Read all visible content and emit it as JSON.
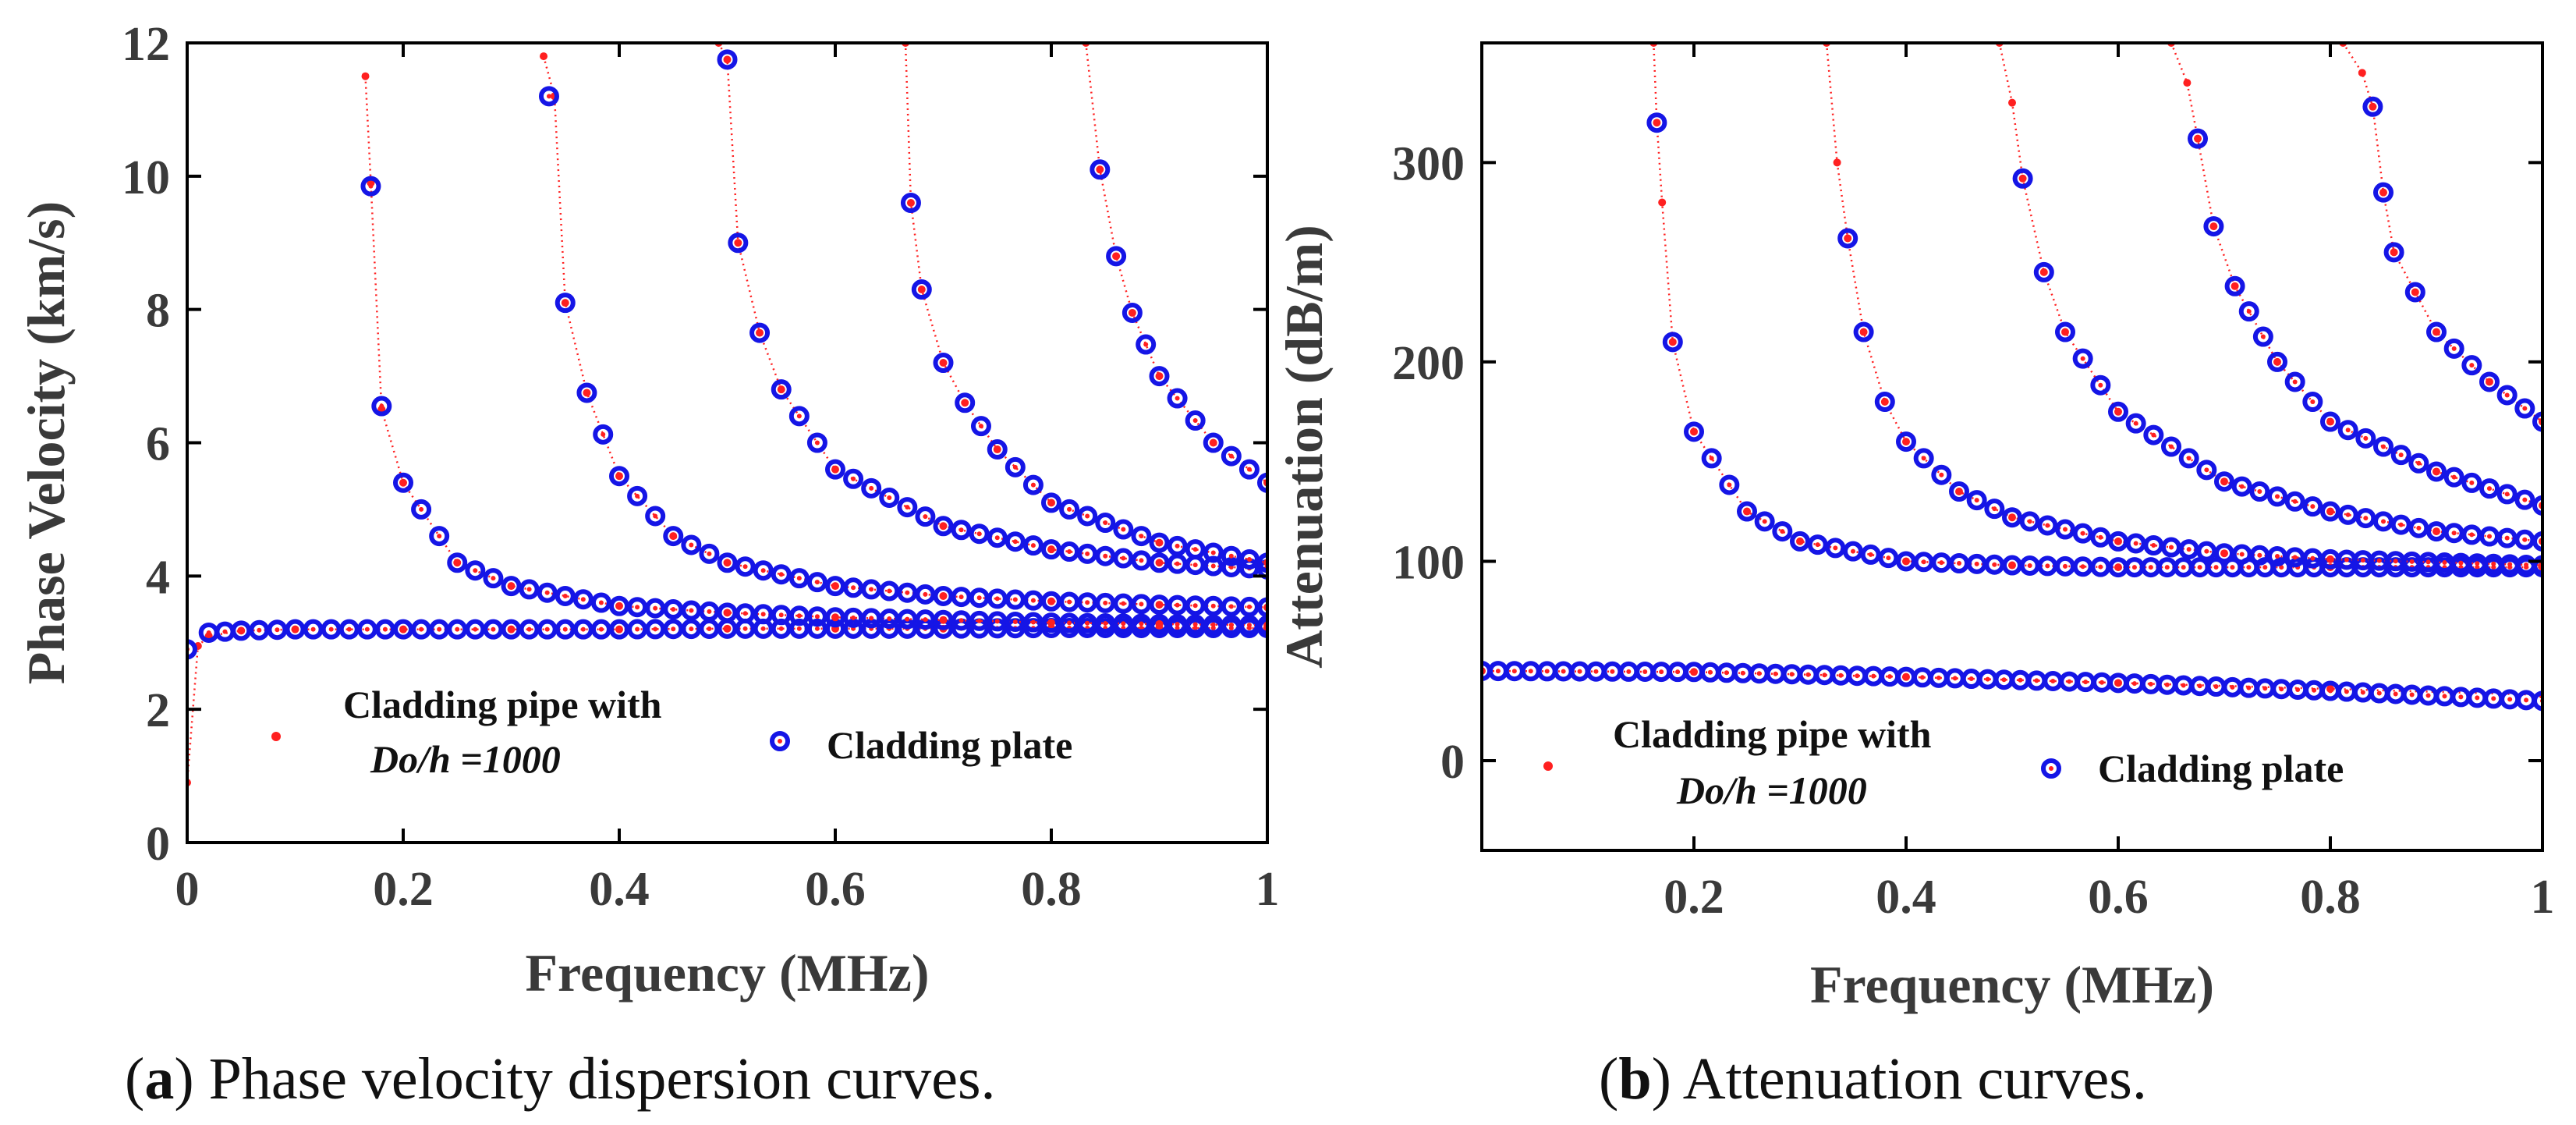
{
  "colors": {
    "pipe": "#ff2020",
    "plate": "#1515e6",
    "axis": "#000000",
    "text": "#3a3a3a"
  },
  "chart_data": [
    {
      "type": "scatter",
      "panel": "a",
      "caption_letter": "a",
      "caption_text": ") Phase velocity dispersion curves.",
      "xlabel": "Frequency (MHz)",
      "ylabel": "Phase Velocity (km/s)",
      "xlim": [
        0,
        1
      ],
      "ylim": [
        0,
        12
      ],
      "xticks": [
        0,
        0.2,
        0.4,
        0.6,
        0.8,
        1
      ],
      "xtick_labels": [
        "0",
        "0.2",
        "0.4",
        "0.6",
        "0.8",
        "1"
      ],
      "yticks": [
        0,
        2,
        4,
        6,
        8,
        10,
        12
      ],
      "ytick_labels": [
        "0",
        "2",
        "4",
        "6",
        "8",
        "10",
        "12"
      ],
      "legend": [
        {
          "marker": "dot",
          "label_lines": [
            "Cladding pipe with",
            "Do/h =1000"
          ]
        },
        {
          "marker": "circle",
          "label_lines": [
            "Cladding plate"
          ]
        }
      ],
      "series": [
        {
          "name": "Cladding pipe with Do/h =1000",
          "mode": "0",
          "x": [
            0,
            0.01,
            0.02,
            0.05,
            0.1,
            0.2,
            0.3,
            0.4,
            0.5,
            0.6,
            0.7,
            0.8,
            0.9,
            1.0
          ],
          "y": [
            0.9,
            2.95,
            3.1,
            3.18,
            3.2,
            3.2,
            3.2,
            3.2,
            3.21,
            3.21,
            3.21,
            3.22,
            3.22,
            3.22
          ]
        },
        {
          "name": "Cladding plate",
          "mode": "0",
          "x": [
            0,
            0.02,
            0.05,
            0.1,
            0.2,
            0.3,
            0.4,
            0.5,
            0.6,
            0.7,
            0.8,
            0.9,
            1.0
          ],
          "y": [
            2.9,
            3.15,
            3.18,
            3.2,
            3.2,
            3.2,
            3.2,
            3.21,
            3.21,
            3.21,
            3.22,
            3.22,
            3.22
          ]
        },
        {
          "name": "Cladding pipe with Do/h =1000",
          "mode": "1",
          "cutoff": 0.162,
          "x": [
            0.165,
            0.17,
            0.18,
            0.2,
            0.25,
            0.3,
            0.4,
            0.5,
            0.6,
            0.7,
            0.8,
            0.9,
            1.0
          ],
          "y": [
            11.5,
            9.9,
            6.5,
            5.4,
            4.2,
            3.85,
            3.55,
            3.45,
            3.38,
            3.34,
            3.3,
            3.28,
            3.26
          ]
        },
        {
          "name": "Cladding plate",
          "mode": "1",
          "cutoff": 0.162,
          "x": [
            0.17,
            0.18,
            0.2,
            0.25,
            0.3,
            0.4,
            0.5,
            0.6,
            0.7,
            0.8,
            0.9,
            1.0
          ],
          "y": [
            9.85,
            6.55,
            5.4,
            4.2,
            3.85,
            3.55,
            3.45,
            3.38,
            3.34,
            3.3,
            3.28,
            3.26
          ]
        },
        {
          "name": "Cladding pipe with Do/h =1000",
          "mode": "2",
          "cutoff": 0.325,
          "x": [
            0.33,
            0.34,
            0.35,
            0.37,
            0.4,
            0.45,
            0.5,
            0.6,
            0.7,
            0.8,
            0.9,
            1.0
          ],
          "y": [
            11.8,
            11.2,
            8.1,
            6.75,
            5.5,
            4.6,
            4.2,
            3.85,
            3.7,
            3.62,
            3.57,
            3.53
          ]
        },
        {
          "name": "Cladding plate",
          "mode": "2",
          "cutoff": 0.325,
          "x": [
            0.335,
            0.35,
            0.37,
            0.4,
            0.45,
            0.5,
            0.6,
            0.7,
            0.8,
            0.9,
            1.0
          ],
          "y": [
            11.2,
            8.1,
            6.75,
            5.5,
            4.6,
            4.2,
            3.85,
            3.7,
            3.62,
            3.57,
            3.53
          ]
        },
        {
          "name": "Cladding pipe with Do/h =1000",
          "mode": "3",
          "cutoff": 0.488,
          "x": [
            0.492,
            0.5,
            0.51,
            0.53,
            0.55,
            0.6,
            0.7,
            0.8,
            0.9,
            1.0
          ],
          "y": [
            12,
            11.75,
            9.0,
            7.65,
            6.8,
            5.6,
            4.75,
            4.4,
            4.2,
            4.1
          ]
        },
        {
          "name": "Cladding plate",
          "mode": "3",
          "cutoff": 0.488,
          "x": [
            0.5,
            0.51,
            0.53,
            0.55,
            0.6,
            0.7,
            0.8,
            0.9,
            1.0
          ],
          "y": [
            11.75,
            9.0,
            7.65,
            6.8,
            5.6,
            4.75,
            4.4,
            4.2,
            4.1
          ]
        },
        {
          "name": "Cladding pipe with Do/h =1000",
          "mode": "4",
          "cutoff": 0.65,
          "x": [
            0.665,
            0.67,
            0.68,
            0.7,
            0.72,
            0.75,
            0.8,
            0.9,
            1.0
          ],
          "y": [
            12,
            9.6,
            8.3,
            7.2,
            6.6,
            5.9,
            5.1,
            4.5,
            4.2
          ]
        },
        {
          "name": "Cladding plate",
          "mode": "4",
          "cutoff": 0.65,
          "x": [
            0.67,
            0.68,
            0.7,
            0.72,
            0.75,
            0.8,
            0.9,
            1.0
          ],
          "y": [
            9.6,
            8.3,
            7.2,
            6.6,
            5.9,
            5.1,
            4.5,
            4.2
          ]
        },
        {
          "name": "Cladding pipe with Do/h =1000",
          "mode": "5",
          "cutoff": 0.812,
          "x": [
            0.832,
            0.845,
            0.86,
            0.875,
            0.9,
            0.95,
            1.0
          ],
          "y": [
            12,
            10.1,
            8.8,
            7.95,
            7.0,
            6.0,
            5.4
          ]
        },
        {
          "name": "Cladding plate",
          "mode": "5",
          "cutoff": 0.812,
          "x": [
            0.845,
            0.86,
            0.875,
            0.9,
            0.95,
            1.0
          ],
          "y": [
            10.1,
            8.8,
            7.95,
            7.0,
            6.0,
            5.4
          ]
        }
      ]
    },
    {
      "type": "scatter",
      "panel": "b",
      "caption_letter": "b",
      "caption_text": ") Attenuation curves.",
      "xlabel": "Frequency (MHz)",
      "ylabel": "Attenuation (dB/m)",
      "xlim": [
        0,
        1
      ],
      "ylim": [
        -45,
        360
      ],
      "xticks": [
        0.2,
        0.4,
        0.6,
        0.8,
        1
      ],
      "xtick_labels": [
        "0.2",
        "0.4",
        "0.6",
        "0.8",
        "1"
      ],
      "yticks": [
        0,
        100,
        200,
        300
      ],
      "ytick_labels": [
        "0",
        "100",
        "200",
        "300"
      ],
      "legend": [
        {
          "marker": "dot",
          "label_lines": [
            "Cladding pipe with",
            "Do/h =1000"
          ]
        },
        {
          "marker": "circle",
          "label_lines": [
            "Cladding plate"
          ]
        }
      ],
      "series": [
        {
          "name": "Cladding pipe with Do/h =1000",
          "mode": "0",
          "x": [
            0,
            0.2,
            0.4,
            0.6,
            0.8,
            1.0
          ],
          "y": [
            45,
            44.5,
            42,
            39,
            36,
            33
          ]
        },
        {
          "name": "Cladding plate",
          "mode": "0",
          "x": [
            0,
            0.2,
            0.4,
            0.6,
            0.8,
            1.0
          ],
          "y": [
            45,
            44.5,
            42,
            39,
            35,
            30
          ]
        },
        {
          "name": "Cladding pipe with Do/h =1000",
          "mode": "1",
          "cutoff": 0.162,
          "x": [
            0.162,
            0.165,
            0.17,
            0.18,
            0.2,
            0.25,
            0.3,
            0.4,
            0.5,
            0.6,
            0.8,
            1.0
          ],
          "y": [
            360,
            320,
            280,
            210,
            165,
            125,
            110,
            100,
            98,
            97,
            97,
            97
          ]
        },
        {
          "name": "Cladding plate",
          "mode": "1",
          "cutoff": 0.162,
          "x": [
            0.165,
            0.18,
            0.2,
            0.25,
            0.3,
            0.4,
            0.5,
            0.6,
            0.8,
            1.0
          ],
          "y": [
            320,
            210,
            165,
            125,
            110,
            100,
            98,
            97,
            97,
            97
          ]
        },
        {
          "name": "Cladding pipe with Do/h =1000",
          "mode": "2",
          "cutoff": 0.325,
          "x": [
            0.325,
            0.335,
            0.345,
            0.36,
            0.38,
            0.4,
            0.45,
            0.5,
            0.6,
            0.7,
            0.8,
            1.0
          ],
          "y": [
            360,
            300,
            262,
            215,
            180,
            160,
            135,
            122,
            110,
            104,
            101,
            98
          ]
        },
        {
          "name": "Cladding plate",
          "mode": "2",
          "cutoff": 0.325,
          "x": [
            0.345,
            0.36,
            0.38,
            0.4,
            0.45,
            0.5,
            0.6,
            0.7,
            0.8,
            1.0
          ],
          "y": [
            262,
            215,
            180,
            160,
            135,
            122,
            110,
            104,
            101,
            98
          ]
        },
        {
          "name": "Cladding pipe with Do/h =1000",
          "mode": "3",
          "cutoff": 0.488,
          "x": [
            0.488,
            0.5,
            0.51,
            0.53,
            0.55,
            0.6,
            0.7,
            0.8,
            0.9,
            1.0
          ],
          "y": [
            360,
            330,
            292,
            245,
            215,
            175,
            140,
            125,
            115,
            110
          ]
        },
        {
          "name": "Cladding plate",
          "mode": "3",
          "cutoff": 0.488,
          "x": [
            0.51,
            0.53,
            0.55,
            0.6,
            0.7,
            0.8,
            0.9,
            1.0
          ],
          "y": [
            292,
            245,
            215,
            175,
            140,
            125,
            115,
            110
          ]
        },
        {
          "name": "Cladding pipe with Do/h =1000",
          "mode": "4",
          "cutoff": 0.65,
          "x": [
            0.65,
            0.665,
            0.675,
            0.69,
            0.71,
            0.75,
            0.8,
            0.9,
            1.0
          ],
          "y": [
            360,
            340,
            312,
            268,
            238,
            200,
            170,
            145,
            128
          ]
        },
        {
          "name": "Cladding plate",
          "mode": "4",
          "cutoff": 0.65,
          "x": [
            0.675,
            0.69,
            0.71,
            0.75,
            0.8,
            0.9,
            1.0
          ],
          "y": [
            312,
            268,
            238,
            200,
            170,
            145,
            128
          ]
        },
        {
          "name": "Cladding pipe with Do/h =1000",
          "mode": "5",
          "cutoff": 0.812,
          "x": [
            0.812,
            0.83,
            0.84,
            0.85,
            0.86,
            0.88,
            0.9,
            0.95,
            1.0
          ],
          "y": [
            360,
            345,
            328,
            285,
            255,
            235,
            215,
            190,
            170
          ]
        },
        {
          "name": "Cladding plate",
          "mode": "5",
          "cutoff": 0.812,
          "x": [
            0.84,
            0.85,
            0.86,
            0.88,
            0.9,
            0.95,
            1.0
          ],
          "y": [
            328,
            285,
            255,
            235,
            215,
            190,
            170
          ]
        }
      ]
    }
  ]
}
